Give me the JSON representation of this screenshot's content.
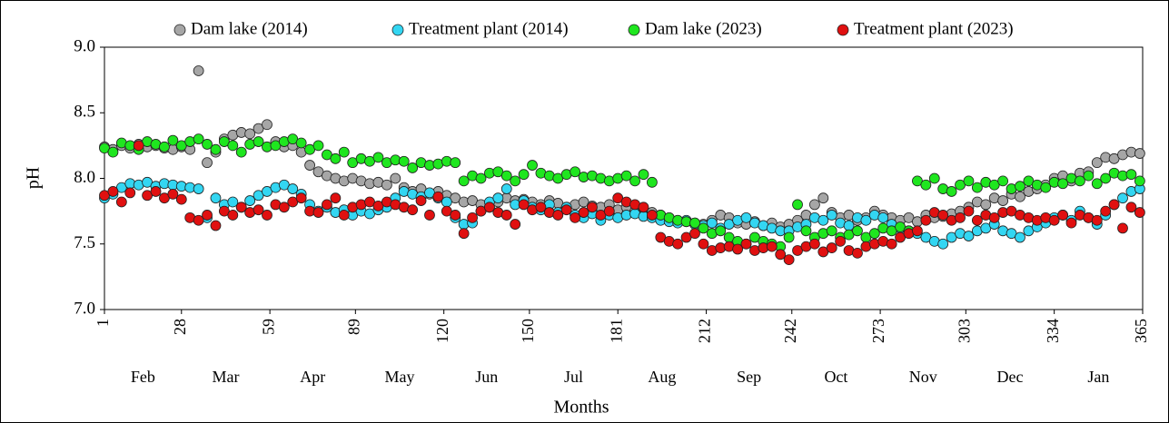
{
  "chart_data": {
    "type": "scatter",
    "x_title": "Months",
    "y_title": "pH",
    "xlim": [
      1,
      365
    ],
    "ylim": [
      7,
      9
    ],
    "xticks": [
      1,
      28,
      59,
      89,
      120,
      150,
      181,
      212,
      242,
      273,
      303,
      334,
      365
    ],
    "yticks": [
      {
        "value": 7,
        "label": "7.0"
      },
      7.5,
      {
        "value": 8,
        "label": "8.0"
      },
      8.5,
      {
        "value": 9,
        "label": "9.0"
      }
    ],
    "month_labels": [
      "Feb",
      "Mar",
      "Apr",
      "May",
      "Jun",
      "Jul",
      "Aug",
      "Sep",
      "Oct",
      "Nov",
      "Dec",
      "Jan"
    ],
    "grid": false,
    "legend": "top",
    "x": [
      1,
      4,
      7,
      10,
      13,
      16,
      19,
      22,
      25,
      28,
      31,
      34,
      37,
      40,
      43,
      46,
      49,
      52,
      55,
      58,
      61,
      64,
      67,
      70,
      73,
      76,
      79,
      82,
      85,
      88,
      91,
      94,
      97,
      100,
      103,
      106,
      109,
      112,
      115,
      118,
      121,
      124,
      127,
      130,
      133,
      136,
      139,
      142,
      145,
      148,
      151,
      154,
      157,
      160,
      163,
      166,
      169,
      172,
      175,
      178,
      181,
      184,
      187,
      190,
      193,
      196,
      199,
      202,
      205,
      208,
      211,
      214,
      217,
      220,
      223,
      226,
      229,
      232,
      235,
      238,
      241,
      244,
      247,
      250,
      253,
      256,
      259,
      262,
      265,
      268,
      271,
      274,
      277,
      280,
      283,
      286,
      289,
      292,
      295,
      298,
      301,
      304,
      307,
      310,
      313,
      316,
      319,
      322,
      325,
      328,
      331,
      334,
      337,
      340,
      343,
      346,
      349,
      352,
      355,
      358,
      361,
      364
    ],
    "series": [
      {
        "name": "Dam lake (2014)",
        "color": "#a6a6a6",
        "values": [
          8.24,
          8.22,
          8.25,
          8.23,
          8.26,
          8.24,
          8.25,
          8.23,
          8.22,
          8.24,
          8.22,
          8.82,
          8.12,
          8.2,
          8.3,
          8.33,
          8.35,
          8.34,
          8.38,
          8.41,
          8.28,
          8.24,
          8.25,
          8.2,
          8.1,
          8.05,
          8.02,
          8.0,
          7.98,
          8.0,
          7.98,
          7.96,
          7.97,
          7.95,
          8.0,
          7.93,
          7.9,
          7.92,
          7.88,
          7.9,
          7.87,
          7.85,
          7.82,
          7.83,
          7.8,
          7.78,
          7.82,
          7.85,
          7.83,
          7.84,
          7.82,
          7.8,
          7.83,
          7.81,
          7.78,
          7.8,
          7.82,
          7.79,
          7.78,
          7.8,
          7.76,
          7.78,
          7.75,
          7.77,
          7.74,
          7.72,
          7.7,
          7.68,
          7.67,
          7.66,
          7.65,
          7.68,
          7.72,
          7.7,
          7.66,
          7.65,
          7.67,
          7.64,
          7.66,
          7.63,
          7.65,
          7.68,
          7.72,
          7.8,
          7.85,
          7.74,
          7.7,
          7.72,
          7.68,
          7.7,
          7.75,
          7.72,
          7.7,
          7.68,
          7.7,
          7.67,
          7.72,
          7.7,
          7.71,
          7.73,
          7.75,
          7.78,
          7.82,
          7.8,
          7.85,
          7.83,
          7.88,
          7.86,
          7.9,
          7.92,
          7.95,
          8.0,
          8.02,
          7.98,
          8.04,
          8.05,
          8.12,
          8.16,
          8.15,
          8.18,
          8.2,
          8.19
        ]
      },
      {
        "name": "Treatment plant (2014)",
        "color": "#33d6f2",
        "values": [
          7.85,
          7.88,
          7.93,
          7.96,
          7.95,
          7.97,
          7.94,
          7.96,
          7.95,
          7.94,
          7.93,
          7.92,
          7.7,
          7.85,
          7.8,
          7.82,
          7.78,
          7.83,
          7.87,
          7.9,
          7.93,
          7.95,
          7.92,
          7.88,
          7.8,
          7.75,
          7.78,
          7.74,
          7.76,
          7.72,
          7.75,
          7.73,
          7.76,
          7.78,
          7.85,
          7.9,
          7.88,
          7.86,
          7.89,
          7.85,
          7.82,
          7.7,
          7.65,
          7.66,
          7.75,
          7.82,
          7.85,
          7.92,
          7.8,
          7.83,
          7.78,
          7.76,
          7.8,
          7.74,
          7.78,
          7.72,
          7.7,
          7.73,
          7.68,
          7.72,
          7.7,
          7.72,
          7.73,
          7.71,
          7.7,
          7.68,
          7.67,
          7.66,
          7.68,
          7.65,
          7.64,
          7.66,
          7.62,
          7.65,
          7.68,
          7.7,
          7.66,
          7.64,
          7.62,
          7.6,
          7.6,
          7.63,
          7.65,
          7.7,
          7.68,
          7.72,
          7.66,
          7.64,
          7.7,
          7.68,
          7.72,
          7.7,
          7.65,
          7.62,
          7.6,
          7.58,
          7.55,
          7.52,
          7.5,
          7.55,
          7.58,
          7.56,
          7.6,
          7.62,
          7.65,
          7.6,
          7.58,
          7.55,
          7.6,
          7.63,
          7.66,
          7.7,
          7.72,
          7.68,
          7.75,
          7.7,
          7.65,
          7.72,
          7.8,
          7.85,
          7.9,
          7.92
        ]
      },
      {
        "name": "Dam lake (2023)",
        "color": "#1fe61f",
        "values": [
          8.23,
          8.2,
          8.27,
          8.25,
          8.22,
          8.28,
          8.26,
          8.24,
          8.29,
          8.25,
          8.28,
          8.3,
          8.26,
          8.22,
          8.28,
          8.25,
          8.2,
          8.26,
          8.28,
          8.24,
          8.25,
          8.28,
          8.3,
          8.27,
          8.22,
          8.25,
          8.18,
          8.15,
          8.2,
          8.12,
          8.15,
          8.13,
          8.16,
          8.12,
          8.14,
          8.13,
          8.08,
          8.12,
          8.1,
          8.11,
          8.13,
          8.12,
          7.98,
          8.02,
          8.0,
          8.04,
          8.05,
          8.02,
          7.98,
          8.03,
          8.1,
          8.04,
          8.02,
          8.0,
          8.03,
          8.05,
          8.01,
          8.02,
          8.0,
          7.98,
          8.0,
          8.02,
          7.98,
          8.03,
          7.97,
          7.72,
          7.7,
          7.68,
          7.67,
          7.66,
          7.62,
          7.58,
          7.6,
          7.55,
          7.52,
          7.5,
          7.55,
          7.52,
          7.5,
          7.48,
          7.55,
          7.8,
          7.6,
          7.55,
          7.58,
          7.6,
          7.55,
          7.57,
          7.6,
          7.55,
          7.58,
          7.62,
          7.6,
          7.63,
          7.6,
          7.98,
          7.95,
          8.0,
          7.92,
          7.9,
          7.95,
          7.98,
          7.93,
          7.97,
          7.95,
          7.98,
          7.92,
          7.94,
          7.98,
          7.95,
          7.93,
          7.97,
          7.96,
          8.0,
          7.98,
          8.02,
          7.96,
          8.0,
          8.04,
          8.02,
          8.03,
          7.98
        ]
      },
      {
        "name": "Treatment plant (2023)",
        "color": "#e01010",
        "values": [
          7.87,
          7.9,
          7.82,
          7.89,
          8.25,
          7.87,
          7.9,
          7.85,
          7.88,
          7.84,
          7.7,
          7.68,
          7.72,
          7.64,
          7.75,
          7.72,
          7.78,
          7.74,
          7.76,
          7.72,
          7.8,
          7.78,
          7.82,
          7.85,
          7.75,
          7.74,
          7.8,
          7.85,
          7.72,
          7.78,
          7.8,
          7.82,
          7.79,
          7.82,
          7.8,
          7.78,
          7.76,
          7.83,
          7.72,
          7.86,
          7.75,
          7.72,
          7.58,
          7.7,
          7.75,
          7.78,
          7.74,
          7.72,
          7.65,
          7.8,
          7.76,
          7.78,
          7.74,
          7.72,
          7.76,
          7.7,
          7.74,
          7.78,
          7.72,
          7.75,
          7.85,
          7.82,
          7.8,
          7.78,
          7.72,
          7.55,
          7.52,
          7.5,
          7.55,
          7.58,
          7.5,
          7.45,
          7.47,
          7.48,
          7.46,
          7.5,
          7.45,
          7.47,
          7.48,
          7.42,
          7.38,
          7.45,
          7.48,
          7.5,
          7.44,
          7.47,
          7.52,
          7.45,
          7.43,
          7.48,
          7.5,
          7.52,
          7.5,
          7.55,
          7.58,
          7.6,
          7.68,
          7.74,
          7.72,
          7.68,
          7.7,
          7.75,
          7.68,
          7.72,
          7.7,
          7.74,
          7.75,
          7.72,
          7.7,
          7.68,
          7.7,
          7.68,
          7.72,
          7.66,
          7.72,
          7.7,
          7.68,
          7.75,
          7.8,
          7.62,
          7.78,
          7.74
        ]
      }
    ]
  }
}
